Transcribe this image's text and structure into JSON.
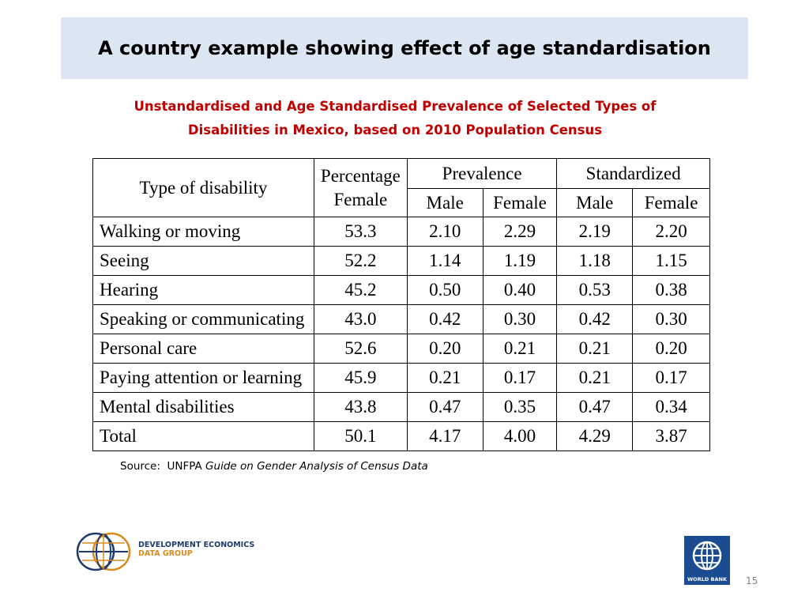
{
  "slide": {
    "title": "A country example showing effect of age standardisation",
    "subtitle_line1": "Unstandardised and Age Standardised Prevalence of Selected Types of",
    "subtitle_line2": "Disabilities in Mexico, based on 2010 Population Census",
    "page_number": "15"
  },
  "table": {
    "header": {
      "type": "Type of disability",
      "pct_female_line1": "Percentage",
      "pct_female_line2": "Female",
      "prevalence": "Prevalence",
      "standardized": "Standardized",
      "male": "Male",
      "female": "Female"
    },
    "rows": [
      {
        "type": "Walking or moving",
        "pct_female": "53.3",
        "prev_male": "2.10",
        "prev_female": "2.29",
        "std_male": "2.19",
        "std_female": "2.20"
      },
      {
        "type": "Seeing",
        "pct_female": "52.2",
        "prev_male": "1.14",
        "prev_female": "1.19",
        "std_male": "1.18",
        "std_female": "1.15"
      },
      {
        "type": "Hearing",
        "pct_female": "45.2",
        "prev_male": "0.50",
        "prev_female": "0.40",
        "std_male": "0.53",
        "std_female": "0.38"
      },
      {
        "type": "Speaking or communicating",
        "pct_female": "43.0",
        "prev_male": "0.42",
        "prev_female": "0.30",
        "std_male": "0.42",
        "std_female": "0.30"
      },
      {
        "type": "Personal care",
        "pct_female": "52.6",
        "prev_male": "0.20",
        "prev_female": "0.21",
        "std_male": "0.21",
        "std_female": "0.20"
      },
      {
        "type": "Paying attention or learning",
        "pct_female": "45.9",
        "prev_male": "0.21",
        "prev_female": "0.17",
        "std_male": "0.21",
        "std_female": "0.17"
      },
      {
        "type": "Mental disabilities",
        "pct_female": "43.8",
        "prev_male": "0.47",
        "prev_female": "0.35",
        "std_male": "0.47",
        "std_female": "0.34"
      },
      {
        "type": "Total",
        "pct_female": "50.1",
        "prev_male": "4.17",
        "prev_female": "4.00",
        "std_male": "4.29",
        "std_female": "3.87"
      }
    ]
  },
  "source": {
    "prefix": "Source:  UNFPA ",
    "title": "Guide on Gender Analysis of Census Data"
  },
  "logos": {
    "deg_line1": "DEVELOPMENT ECONOMICS",
    "deg_line2": "DATA GROUP",
    "world_bank": "WORLD BANK"
  },
  "colors": {
    "title_bar_bg": "#dce6f2",
    "subtitle": "#c00000",
    "world_bank_blue": "#1b4b91",
    "deg_navy": "#1f3b6e",
    "deg_orange": "#d98a1f"
  }
}
